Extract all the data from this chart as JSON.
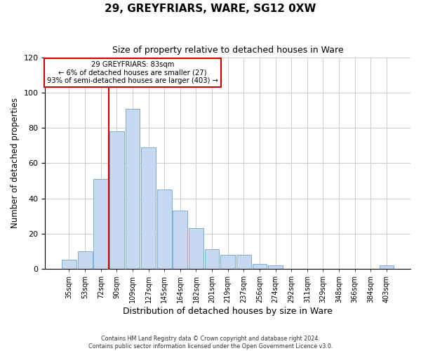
{
  "title": "29, GREYFRIARS, WARE, SG12 0XW",
  "subtitle": "Size of property relative to detached houses in Ware",
  "xlabel": "Distribution of detached houses by size in Ware",
  "ylabel": "Number of detached properties",
  "bar_color": "#c6d9f0",
  "bar_edge_color": "#7bafd4",
  "categories": [
    "35sqm",
    "53sqm",
    "72sqm",
    "90sqm",
    "109sqm",
    "127sqm",
    "145sqm",
    "164sqm",
    "182sqm",
    "201sqm",
    "219sqm",
    "237sqm",
    "256sqm",
    "274sqm",
    "292sqm",
    "311sqm",
    "329sqm",
    "348sqm",
    "366sqm",
    "384sqm",
    "403sqm"
  ],
  "values": [
    5,
    10,
    51,
    78,
    91,
    69,
    45,
    33,
    23,
    11,
    8,
    8,
    3,
    2,
    0,
    0,
    0,
    0,
    0,
    0,
    2
  ],
  "ylim": [
    0,
    120
  ],
  "yticks": [
    0,
    20,
    40,
    60,
    80,
    100,
    120
  ],
  "marker_label": "29 GREYFRIARS: 83sqm",
  "annotation_line1": "← 6% of detached houses are smaller (27)",
  "annotation_line2": "93% of semi-detached houses are larger (403) →",
  "vline_color": "#cc0000",
  "annotation_box_edge": "#cc0000",
  "footer_line1": "Contains HM Land Registry data © Crown copyright and database right 2024.",
  "footer_line2": "Contains public sector information licensed under the Open Government Licence v3.0.",
  "background_color": "#ffffff",
  "grid_color": "#cccccc"
}
